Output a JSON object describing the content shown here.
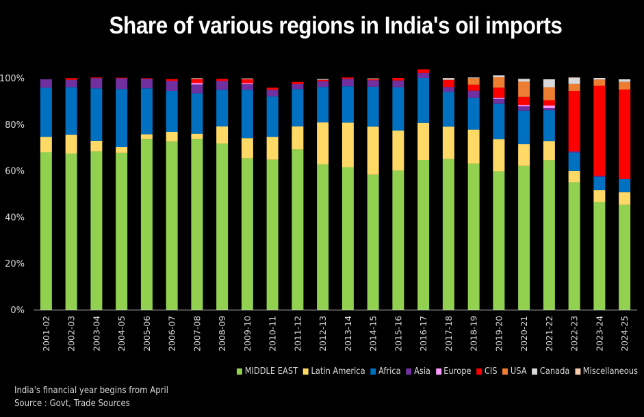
{
  "chart_data": {
    "type": "bar",
    "stacked": true,
    "title": "Share of various regions in India's oil imports",
    "xlabel": "",
    "ylabel": "",
    "ylim": [
      0,
      100
    ],
    "yticks": [
      "0%",
      "20%",
      "40%",
      "60%",
      "80%",
      "100%"
    ],
    "ytick_values": [
      0,
      20,
      40,
      60,
      80,
      100
    ],
    "grid": false,
    "legend_position": "bottom-right",
    "categories": [
      "2001-02",
      "2002-03",
      "2003-04",
      "2004-05",
      "2005-06",
      "2006-07",
      "2007-08",
      "2008-09",
      "2009-10",
      "2010-11",
      "2011-12",
      "2012-13",
      "2013-14",
      "2014-15",
      "2015-16",
      "2016-17",
      "2017-18",
      "2018-19",
      "2019-20",
      "2020-21",
      "2021-22",
      "2022-23",
      "2023-24",
      "2024-25"
    ],
    "series": [
      {
        "name": "MIDDLE EAST",
        "color": "#92d050",
        "values": [
          68.0,
          67.4,
          68.3,
          67.6,
          73.7,
          72.6,
          73.7,
          71.7,
          65.3,
          64.7,
          69.2,
          62.7,
          61.5,
          58.2,
          60.0,
          64.6,
          65.0,
          63.0,
          59.7,
          62.0,
          64.5,
          55.0,
          46.4,
          45.2
        ]
      },
      {
        "name": "Latin America",
        "color": "#ffd966",
        "values": [
          6.6,
          8.1,
          4.6,
          2.6,
          2.0,
          4.1,
          2.2,
          7.4,
          8.7,
          9.9,
          9.9,
          18.1,
          19.2,
          20.8,
          17.3,
          16.0,
          14.0,
          14.7,
          13.9,
          9.4,
          8.3,
          4.9,
          5.2,
          5.5
        ]
      },
      {
        "name": "Africa",
        "color": "#0070c0",
        "values": [
          21.2,
          20.5,
          22.6,
          25.0,
          19.8,
          17.7,
          17.5,
          15.8,
          20.8,
          17.4,
          16.1,
          15.3,
          15.7,
          17.2,
          18.7,
          19.4,
          15.0,
          13.8,
          15.3,
          14.5,
          13.3,
          7.9,
          5.7,
          5.7
        ]
      },
      {
        "name": "Asia",
        "color": "#7030a0",
        "values": [
          3.6,
          3.2,
          4.4,
          4.6,
          4.1,
          4.3,
          3.8,
          3.8,
          2.5,
          2.9,
          2.2,
          2.5,
          3.2,
          2.8,
          2.9,
          2.1,
          2.1,
          3.0,
          2.1,
          1.9,
          0.9,
          0.5,
          0.5,
          0.0
        ]
      },
      {
        "name": "Europe",
        "color": "#ff99ff",
        "values": [
          0.0,
          0.0,
          0.0,
          0.0,
          0.0,
          0.0,
          0.6,
          0.0,
          0.4,
          0.0,
          0.0,
          0.0,
          0.0,
          0.0,
          0.0,
          0.0,
          0.0,
          0.0,
          0.5,
          0.5,
          1.1,
          0.0,
          0.0,
          0.0
        ]
      },
      {
        "name": "CIS",
        "color": "#ff0000",
        "values": [
          0.0,
          0.7,
          0.3,
          0.3,
          0.3,
          0.8,
          1.8,
          0.9,
          1.8,
          0.9,
          0.9,
          0.6,
          0.6,
          0.5,
          1.1,
          1.6,
          3.1,
          2.6,
          4.3,
          3.5,
          2.3,
          26.1,
          38.8,
          38.6
        ]
      },
      {
        "name": "USA",
        "color": "#ed7d31",
        "values": [
          0.0,
          0.0,
          0.0,
          0.0,
          0.0,
          0.0,
          0.0,
          0.0,
          0.0,
          0.0,
          0.0,
          0.0,
          0.0,
          0.0,
          0.0,
          0.0,
          0.0,
          2.8,
          4.5,
          6.6,
          5.6,
          3.0,
          2.7,
          3.3
        ]
      },
      {
        "name": "Canada",
        "color": "#d9d9d9",
        "values": [
          0.0,
          0.0,
          0.0,
          0.0,
          0.0,
          0.0,
          0.3,
          0.0,
          0.3,
          0.0,
          0.0,
          0.3,
          0.0,
          0.3,
          0.0,
          0.0,
          0.6,
          0.3,
          0.8,
          1.2,
          3.4,
          2.6,
          0.7,
          1.1
        ]
      },
      {
        "name": "Miscellaneous",
        "color": "#f8cbad",
        "values": [
          0.0,
          0.0,
          0.0,
          0.0,
          0.0,
          0.0,
          0.0,
          0.0,
          0.0,
          0.0,
          0.0,
          0.0,
          0.0,
          0.0,
          0.0,
          0.0,
          0.2,
          0.0,
          0.0,
          0.0,
          0.0,
          0.2,
          0.0,
          0.0
        ]
      }
    ]
  },
  "notes": {
    "line1": "India's financial year begins from April",
    "line2": "Source : Govt, Trade Sources"
  }
}
